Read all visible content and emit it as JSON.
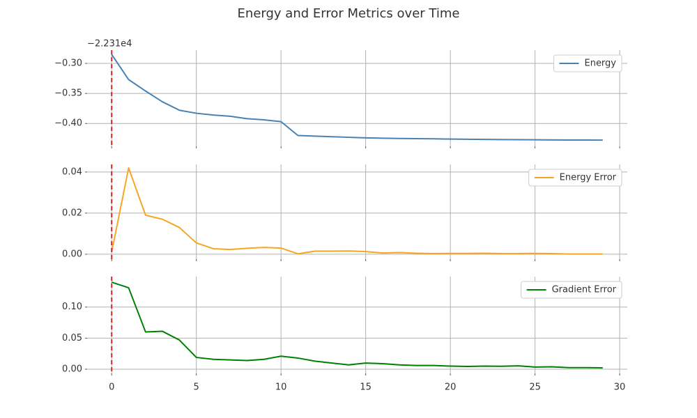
{
  "title": "Energy and Error Metrics over Time",
  "chart_data": [
    {
      "type": "line",
      "offset_label": "−2.231e4",
      "x": [
        0,
        1,
        2,
        3,
        4,
        5,
        6,
        7,
        8,
        9,
        10,
        11,
        12,
        13,
        14,
        15,
        16,
        17,
        18,
        19,
        20,
        21,
        22,
        23,
        24,
        25,
        26,
        27,
        28,
        29
      ],
      "series": [
        {
          "name": "Energy",
          "color": "#4682b4",
          "values": [
            -0.285,
            -0.327,
            -0.346,
            -0.364,
            -0.378,
            -0.383,
            -0.386,
            -0.388,
            -0.392,
            -0.394,
            -0.397,
            -0.42,
            -0.421,
            -0.422,
            -0.423,
            -0.424,
            -0.4245,
            -0.425,
            -0.4253,
            -0.4255,
            -0.426,
            -0.4262,
            -0.4265,
            -0.4268,
            -0.427,
            -0.4272,
            -0.4274,
            -0.4275,
            -0.4276,
            -0.4277
          ]
        }
      ],
      "xlim": [
        -1.45,
        30.45
      ],
      "xticks": [
        0,
        5,
        10,
        15,
        20,
        25,
        30
      ],
      "ylim": [
        -0.438,
        -0.278
      ],
      "yticks": [
        {
          "value": -0.3,
          "label": "−0.30"
        },
        {
          "value": -0.35,
          "label": "−0.35"
        },
        {
          "value": -0.4,
          "label": "−0.40"
        }
      ],
      "grid": true,
      "legend": "upper right",
      "vline": {
        "x": 0,
        "color": "#d62728"
      }
    },
    {
      "type": "line",
      "x": [
        0,
        1,
        2,
        3,
        4,
        5,
        6,
        7,
        8,
        9,
        10,
        11,
        12,
        13,
        14,
        15,
        16,
        17,
        18,
        19,
        20,
        21,
        22,
        23,
        24,
        25,
        26,
        27,
        28,
        29
      ],
      "series": [
        {
          "name": "Energy Error",
          "color": "#f5a623",
          "values": [
            0.001,
            0.042,
            0.019,
            0.017,
            0.013,
            0.0055,
            0.0027,
            0.0023,
            0.0029,
            0.0033,
            0.003,
            0.0002,
            0.0015,
            0.0015,
            0.0016,
            0.0013,
            0.0006,
            0.0008,
            0.0005,
            0.0003,
            0.0004,
            0.0004,
            0.0005,
            0.0003,
            0.0003,
            0.0004,
            0.0003,
            0.0001,
            0.0001,
            0.0001
          ]
        }
      ],
      "xlim": [
        -1.45,
        30.45
      ],
      "xticks": [
        0,
        5,
        10,
        15,
        20,
        25,
        30
      ],
      "ylim": [
        -0.0024,
        0.0437
      ],
      "yticks": [
        {
          "value": 0,
          "label": "0.00"
        },
        {
          "value": 0.02,
          "label": "0.02"
        },
        {
          "value": 0.04,
          "label": "0.04"
        }
      ],
      "grid": true,
      "legend": "upper right",
      "vline": {
        "x": 0,
        "color": "#d62728"
      }
    },
    {
      "type": "line",
      "x": [
        0,
        1,
        2,
        3,
        4,
        5,
        6,
        7,
        8,
        9,
        10,
        11,
        12,
        13,
        14,
        15,
        16,
        17,
        18,
        19,
        20,
        21,
        22,
        23,
        24,
        25,
        26,
        27,
        28,
        29
      ],
      "series": [
        {
          "name": "Gradient Error",
          "color": "#008000",
          "values": [
            0.14,
            0.131,
            0.06,
            0.061,
            0.047,
            0.019,
            0.016,
            0.015,
            0.014,
            0.016,
            0.021,
            0.018,
            0.013,
            0.01,
            0.007,
            0.01,
            0.009,
            0.007,
            0.006,
            0.006,
            0.005,
            0.0045,
            0.005,
            0.0048,
            0.0055,
            0.0035,
            0.004,
            0.0025,
            0.0025,
            0.0022
          ]
        }
      ],
      "xlim": [
        -1.45,
        30.45
      ],
      "xticks": [
        0,
        5,
        10,
        15,
        20,
        25,
        30
      ],
      "xtick_labels": true,
      "ylim": [
        -0.0067,
        0.149
      ],
      "yticks": [
        {
          "value": 0,
          "label": "0.00"
        },
        {
          "value": 0.05,
          "label": "0.05"
        },
        {
          "value": 0.1,
          "label": "0.10"
        }
      ],
      "grid": true,
      "legend": "upper right",
      "vline": {
        "x": 0,
        "color": "#d62728"
      }
    }
  ]
}
